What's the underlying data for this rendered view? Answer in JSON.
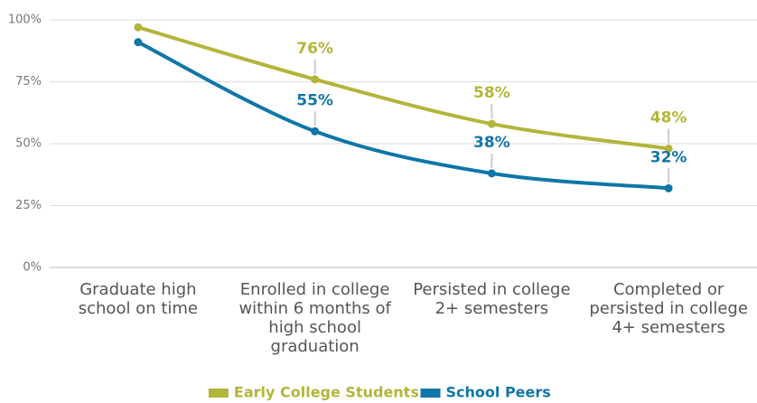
{
  "chart_data": {
    "type": "line",
    "categories": [
      "Graduate high school on time",
      "Enrolled in college within 6 months of high school graduation",
      "Persisted in college 2+ semesters",
      "Completed or persisted in college 4+ semesters"
    ],
    "series": [
      {
        "name": "Early College Students",
        "color": "#b3b53a",
        "values": [
          97,
          76,
          58,
          48
        ],
        "value_labels": [
          null,
          "76%",
          "58%",
          "48%"
        ]
      },
      {
        "name": "School Peers",
        "color": "#0f76a8",
        "values": [
          91,
          55,
          38,
          32
        ],
        "value_labels": [
          null,
          "55%",
          "38%",
          "32%"
        ]
      }
    ],
    "ylim": [
      0,
      100
    ],
    "yticks": [
      {
        "value": 0,
        "label": "0%"
      },
      {
        "value": 25,
        "label": "25%"
      },
      {
        "value": 50,
        "label": "50%"
      },
      {
        "value": 75,
        "label": "75%"
      },
      {
        "value": 100,
        "label": "100%"
      }
    ],
    "grid": true,
    "legend": "bottom"
  }
}
